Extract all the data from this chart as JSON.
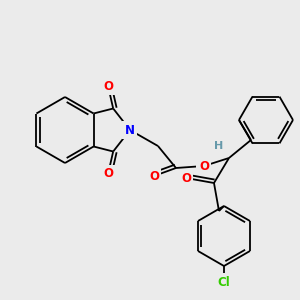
{
  "bg_color": "#ebebeb",
  "atom_colors": {
    "O": "#ff0000",
    "N": "#0000ff",
    "Cl": "#33cc00",
    "H": "#6699aa",
    "C": "#000000"
  },
  "figsize": [
    3.0,
    3.0
  ],
  "dpi": 100
}
